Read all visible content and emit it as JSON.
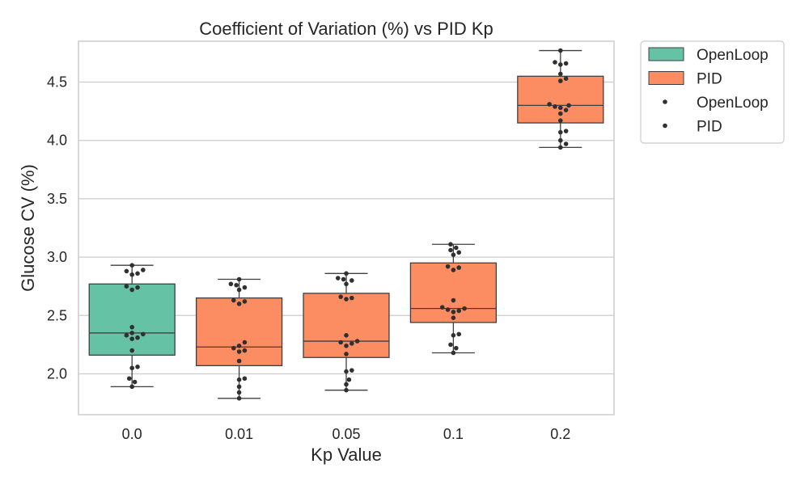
{
  "chart_data": {
    "type": "box",
    "title": "Coefficient of Variation (%) vs PID Kp",
    "xlabel": "Kp Value",
    "ylabel": "Glucose CV (%)",
    "categories": [
      "0.0",
      "0.01",
      "0.05",
      "0.1",
      "0.2"
    ],
    "ylim": [
      1.65,
      4.85
    ],
    "yticks": [
      2.0,
      2.5,
      3.0,
      3.5,
      4.0,
      4.5
    ],
    "ytick_labels": [
      "2.0",
      "2.5",
      "3.0",
      "3.5",
      "4.0",
      "4.5"
    ],
    "grid": true,
    "legend_position": "outside-top-right",
    "colors": {
      "OpenLoop": "#66c2a5",
      "PID": "#fc8d62"
    },
    "series": [
      {
        "name": "OpenLoop",
        "boxes": [
          {
            "category": "0.0",
            "min": 1.89,
            "q1": 2.16,
            "median": 2.35,
            "q3": 2.77,
            "max": 2.93,
            "points": [
              1.89,
              1.93,
              1.96,
              2.05,
              2.06,
              2.2,
              2.3,
              2.31,
              2.33,
              2.34,
              2.35,
              2.4,
              2.72,
              2.74,
              2.75,
              2.85,
              2.86,
              2.88,
              2.89,
              2.93
            ]
          }
        ]
      },
      {
        "name": "PID",
        "boxes": [
          {
            "category": "0.01",
            "min": 1.79,
            "q1": 2.07,
            "median": 2.23,
            "q3": 2.65,
            "max": 2.81,
            "points": [
              1.79,
              1.84,
              1.89,
              1.95,
              1.96,
              2.11,
              2.19,
              2.2,
              2.22,
              2.24,
              2.27,
              2.6,
              2.62,
              2.63,
              2.72,
              2.74,
              2.76,
              2.77,
              2.81
            ]
          },
          {
            "category": "0.05",
            "min": 1.86,
            "q1": 2.14,
            "median": 2.28,
            "q3": 2.69,
            "max": 2.86,
            "points": [
              1.86,
              1.91,
              1.95,
              2.02,
              2.03,
              2.17,
              2.24,
              2.26,
              2.27,
              2.28,
              2.33,
              2.64,
              2.65,
              2.66,
              2.77,
              2.8,
              2.81,
              2.82,
              2.86
            ]
          },
          {
            "category": "0.1",
            "min": 2.18,
            "q1": 2.44,
            "median": 2.56,
            "q3": 2.95,
            "max": 3.11,
            "points": [
              2.18,
              2.22,
              2.25,
              2.33,
              2.34,
              2.48,
              2.53,
              2.54,
              2.55,
              2.56,
              2.57,
              2.63,
              2.89,
              2.91,
              2.92,
              3.02,
              3.04,
              3.06,
              3.08,
              3.11
            ]
          },
          {
            "category": "0.2",
            "min": 3.94,
            "q1": 4.15,
            "median": 4.3,
            "q3": 4.55,
            "max": 4.77,
            "points": [
              3.94,
              3.97,
              4.0,
              4.07,
              4.08,
              4.17,
              4.23,
              4.26,
              4.28,
              4.29,
              4.3,
              4.31,
              4.51,
              4.53,
              4.57,
              4.65,
              4.66,
              4.67,
              4.77
            ]
          }
        ]
      }
    ],
    "legend": [
      {
        "label": "OpenLoop",
        "kind": "patch",
        "series": "OpenLoop"
      },
      {
        "label": "PID",
        "kind": "patch",
        "series": "PID"
      },
      {
        "label": "OpenLoop",
        "kind": "marker",
        "series": "OpenLoop"
      },
      {
        "label": "PID",
        "kind": "marker",
        "series": "PID"
      }
    ]
  }
}
